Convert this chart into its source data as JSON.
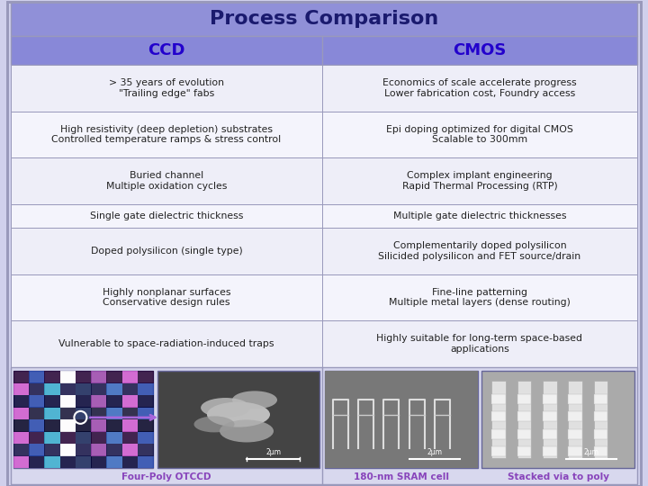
{
  "title": "Process Comparison",
  "title_bg": "#9090d8",
  "title_color": "#1a1a6e",
  "header_bg": "#8888d8",
  "header_ccd": "CCD",
  "header_cmos": "CMOS",
  "header_color": "#2200cc",
  "row_bg_alt": "#eeeef8",
  "row_bg_norm": "#f4f4fc",
  "outer_bg": "#d0d0ec",
  "border_color": "#9999bb",
  "image_area_bg": "#d8d8ee",
  "rows": [
    {
      "ccd": "> 35 years of evolution\n\"Trailing edge\" fabs",
      "cmos": "Economics of scale accelerate progress\nLower fabrication cost, Foundry access"
    },
    {
      "ccd": "High resistivity (deep depletion) substrates\nControlled temperature ramps & stress control",
      "cmos": "Epi doping optimized for digital CMOS\nScalable to 300mm"
    },
    {
      "ccd": "Buried channel\nMultiple oxidation cycles",
      "cmos": "Complex implant engineering\nRapid Thermal Processing (RTP)"
    },
    {
      "ccd": "Single gate dielectric thickness",
      "cmos": "Multiple gate dielectric thicknesses"
    },
    {
      "ccd": "Doped polysilicon (single type)",
      "cmos": "Complementarily doped polysilicon\nSilicided polysilicon and FET source/drain"
    },
    {
      "ccd": "Highly nonplanar surfaces\nConservative design rules",
      "cmos": "Fine-line patterning\nMultiple metal layers (dense routing)"
    },
    {
      "ccd": "Vulnerable to space-radiation-induced traps",
      "cmos": "Highly suitable for long-term space-based\napplications"
    }
  ],
  "image_label_color": "#8844bb",
  "text_color": "#222222",
  "font_size": 7.8,
  "header_font_size": 13,
  "title_font_size": 16
}
